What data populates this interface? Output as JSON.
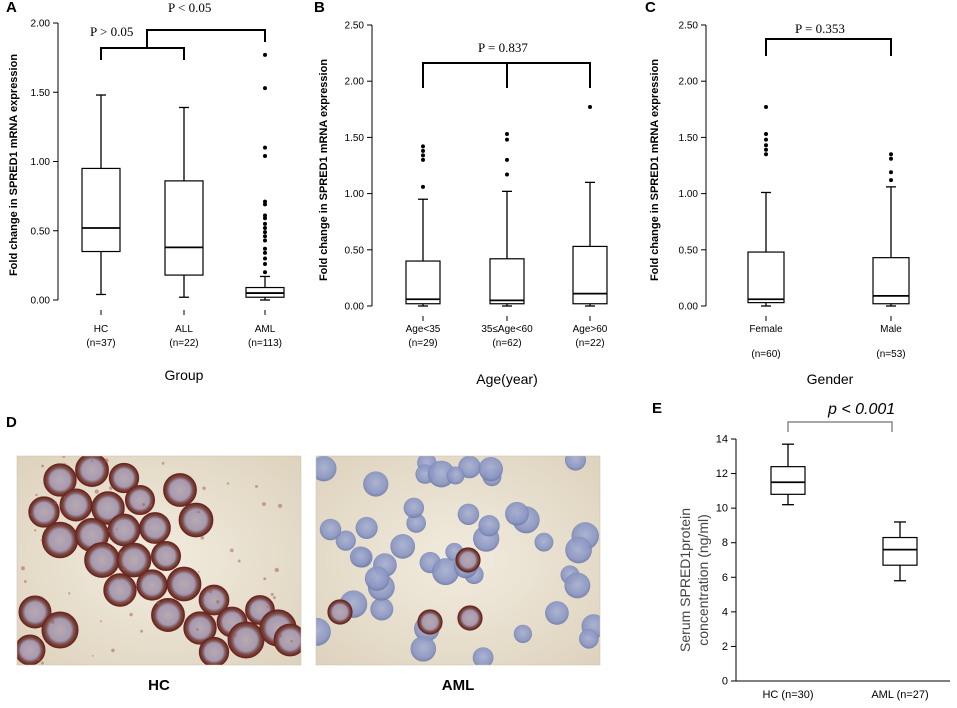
{
  "panels": {
    "A": {
      "letter": "A",
      "ylabel": "Fold change in SPRED1 mRNA expression",
      "xtitle": "Group",
      "p_left_label": "P > 0.05",
      "p_right_label": "P < 0.05",
      "ticks": [
        "0.00",
        "0.50",
        "1.00",
        "1.50",
        "2.00"
      ]
    },
    "B": {
      "letter": "B",
      "ylabel": "Fold change in SPRED1 mRNA expression",
      "xtitle": "Age(year)",
      "p_label": "P = 0.837",
      "ticks": [
        "0.00",
        "0.50",
        "1.00",
        "1.50",
        "2.00",
        "2.50"
      ]
    },
    "C": {
      "letter": "C",
      "ylabel": "Fold change in SPRED1 mRNA expression",
      "xtitle": "Gender",
      "p_label": "P = 0.353",
      "ticks": [
        "0.00",
        "0.50",
        "1.00",
        "1.50",
        "2.00",
        "2.50"
      ]
    },
    "D": {
      "letter": "D",
      "left_label": "HC",
      "right_label": "AML"
    },
    "E": {
      "letter": "E",
      "ylabel_line1": "Serum SPRED1protein",
      "ylabel_line2": "concentration  (ng/ml)",
      "p_label": "p < 0.001",
      "ticks": [
        "0",
        "2",
        "4",
        "6",
        "8",
        "10",
        "12",
        "14"
      ]
    }
  },
  "colors": {
    "stain_brown": "#8b3a2e",
    "hematoxylin_blue": "#7f8fbf",
    "background_cream": "#e9e0cf",
    "bracket_grey": "#888888"
  },
  "chart_data": [
    {
      "panel": "A",
      "type": "box",
      "ylabel": "Fold change in SPRED1 mRNA expression",
      "xlabel": "Group",
      "ylim": [
        0,
        2.0
      ],
      "categories": [
        "HC\n(n=37)",
        "ALL\n(n=22)",
        "AML\n(n=113)"
      ],
      "boxes": [
        {
          "label": "HC",
          "n_label": "(n=37)",
          "min": 0.04,
          "q1": 0.35,
          "median": 0.52,
          "q3": 0.95,
          "max": 1.48,
          "outliers": []
        },
        {
          "label": "ALL",
          "n_label": "(n=22)",
          "min": 0.02,
          "q1": 0.18,
          "median": 0.38,
          "q3": 0.86,
          "max": 1.39,
          "outliers": []
        },
        {
          "label": "AML",
          "n_label": "(n=113)",
          "min": 0.0,
          "q1": 0.02,
          "median": 0.05,
          "q3": 0.09,
          "max": 0.17,
          "outliers": [
            0.2,
            0.26,
            0.3,
            0.34,
            0.37,
            0.43,
            0.46,
            0.49,
            0.52,
            0.55,
            0.59,
            0.61,
            0.69,
            0.71,
            1.04,
            1.1,
            1.53,
            1.77
          ]
        }
      ],
      "annotations": [
        "P > 0.05",
        "P < 0.05"
      ]
    },
    {
      "panel": "B",
      "type": "box",
      "ylabel": "Fold change in SPRED1 mRNA expression",
      "xlabel": "Age(year)",
      "ylim": [
        0,
        2.5
      ],
      "categories": [
        "Age<35\n(n=29)",
        "35≤Age<60\n(n=62)",
        "Age>60\n(n=22)"
      ],
      "boxes": [
        {
          "label": "Age<35",
          "n_label": "(n=29)",
          "min": 0.0,
          "q1": 0.02,
          "median": 0.06,
          "q3": 0.4,
          "max": 0.95,
          "outliers": [
            1.06,
            1.3,
            1.34,
            1.38,
            1.42
          ]
        },
        {
          "label": "35≤Age<60",
          "n_label": "(n=62)",
          "min": 0.0,
          "q1": 0.02,
          "median": 0.05,
          "q3": 0.42,
          "max": 1.02,
          "outliers": [
            1.17,
            1.3,
            1.48,
            1.53
          ]
        },
        {
          "label": "Age>60",
          "n_label": "(n=22)",
          "min": 0.0,
          "q1": 0.02,
          "median": 0.11,
          "q3": 0.53,
          "max": 1.1,
          "outliers": [
            1.77
          ]
        }
      ],
      "annotations": [
        "P = 0.837"
      ]
    },
    {
      "panel": "C",
      "type": "box",
      "ylabel": "Fold change in SPRED1 mRNA expression",
      "xlabel": "Gender",
      "ylim": [
        0,
        2.5
      ],
      "categories": [
        "Female\n(n=60)",
        "Male\n(n=53)"
      ],
      "boxes": [
        {
          "label": "Female",
          "n_label": "(n=60)",
          "min": 0.0,
          "q1": 0.03,
          "median": 0.06,
          "q3": 0.48,
          "max": 1.01,
          "outliers": [
            1.35,
            1.39,
            1.43,
            1.48,
            1.53,
            1.77
          ]
        },
        {
          "label": "Male",
          "n_label": "(n=53)",
          "min": 0.0,
          "q1": 0.02,
          "median": 0.09,
          "q3": 0.43,
          "max": 1.06,
          "outliers": [
            1.12,
            1.19,
            1.31,
            1.35
          ]
        }
      ],
      "annotations": [
        "P = 0.353"
      ]
    },
    {
      "panel": "E",
      "type": "box",
      "ylabel": "Serum SPRED1protein concentration  (ng/ml)",
      "xlabel": "",
      "ylim": [
        0,
        14
      ],
      "categories": [
        "HC (n=30)",
        "AML (n=27)"
      ],
      "boxes": [
        {
          "label": "HC (n=30)",
          "min": 10.2,
          "q1": 10.8,
          "median": 11.5,
          "q3": 12.4,
          "max": 13.7,
          "outliers": []
        },
        {
          "label": "AML (n=27)",
          "min": 5.8,
          "q1": 6.7,
          "median": 7.6,
          "q3": 8.3,
          "max": 9.2,
          "outliers": []
        }
      ],
      "annotations": [
        "p < 0.001"
      ]
    }
  ]
}
